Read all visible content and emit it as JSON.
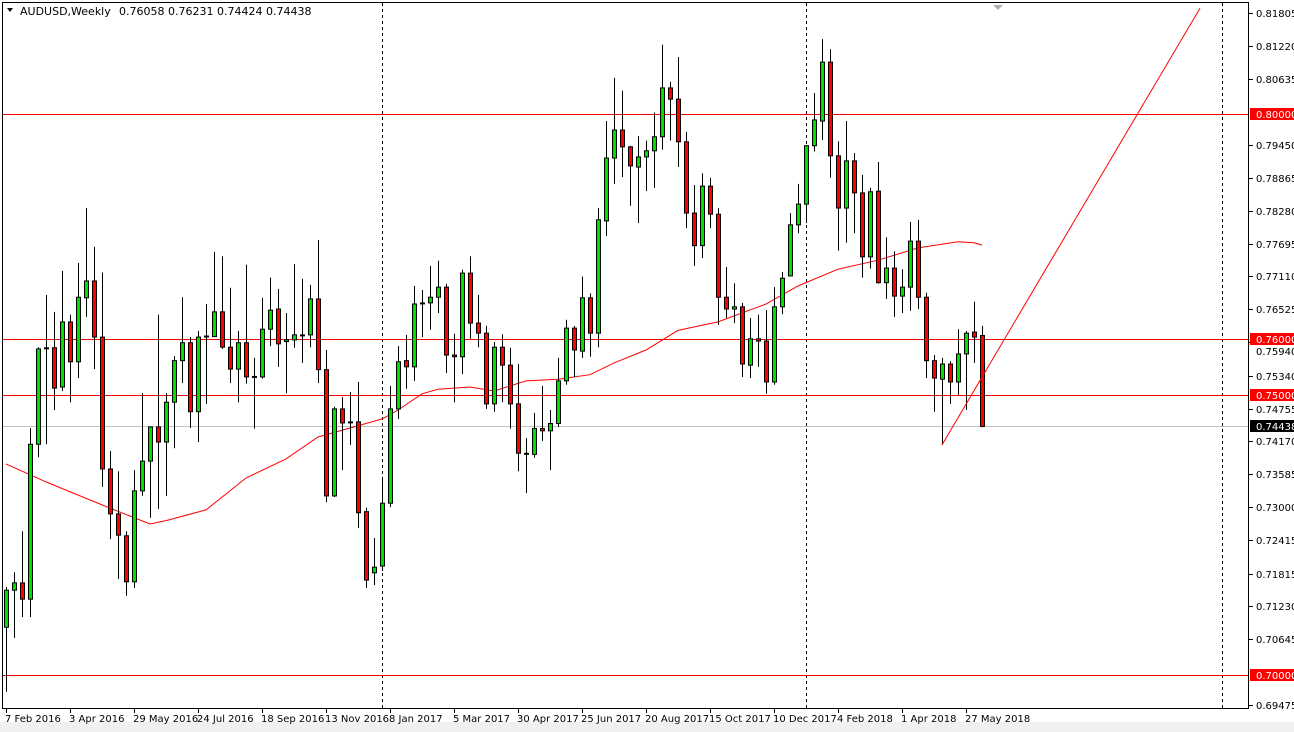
{
  "header": {
    "symbol_timeframe": "AUDUSD,Weekly",
    "ohlc_text": "0.76058 0.76231 0.74424 0.74438"
  },
  "colors": {
    "bull": "#00e000",
    "bear": "#ff0000",
    "outline": "#000000",
    "ma": "#ff0000",
    "hline": "#ff0000",
    "trendline": "#ff0000",
    "price_line": "#c0c0c0",
    "current_price_box": "#000000"
  },
  "chart_data": {
    "type": "candlestick",
    "symbol": "AUDUSD",
    "timeframe": "Weekly",
    "ylim": [
      0.69475,
      0.81805
    ],
    "grid": false,
    "y_ticks": [
      "0.81805",
      "0.81220",
      "0.80635",
      "0.79450",
      "0.78865",
      "0.78280",
      "0.77695",
      "0.77110",
      "0.76525",
      "0.75940",
      "0.75340",
      "0.74755",
      "0.74170",
      "0.73585",
      "0.73000",
      "0.72415",
      "0.71815",
      "0.71230",
      "0.70645",
      "0.69475"
    ],
    "x_ticks": [
      {
        "label": "7 Feb 2016",
        "bar": 0
      },
      {
        "label": "3 Apr 2016",
        "bar": 8
      },
      {
        "label": "29 May 2016",
        "bar": 16
      },
      {
        "label": "24 Jul 2016",
        "bar": 24
      },
      {
        "label": "18 Sep 2016",
        "bar": 32
      },
      {
        "label": "13 Nov 2016",
        "bar": 40
      },
      {
        "label": "8 Jan 2017",
        "bar": 48
      },
      {
        "label": "5 Mar 2017",
        "bar": 56
      },
      {
        "label": "30 Apr 2017",
        "bar": 64
      },
      {
        "label": "25 Jun 2017",
        "bar": 72
      },
      {
        "label": "20 Aug 2017",
        "bar": 80
      },
      {
        "label": "15 Oct 2017",
        "bar": 88
      },
      {
        "label": "10 Dec 2017",
        "bar": 96
      },
      {
        "label": "4 Feb 2018",
        "bar": 104
      },
      {
        "label": "1 Apr 2018",
        "bar": 112
      },
      {
        "label": "27 May 2018",
        "bar": 120
      }
    ],
    "period_separators_bar": [
      47,
      100,
      152
    ],
    "horizontal_levels": [
      {
        "price": 0.8,
        "label": "0.80000"
      },
      {
        "price": 0.76,
        "label": "0.76000"
      },
      {
        "price": 0.75,
        "label": "0.75000"
      },
      {
        "price": 0.7,
        "label": "0.70000"
      }
    ],
    "current_price": {
      "price": 0.74438,
      "label": "0.74438"
    },
    "trendline": [
      {
        "bar": 117,
        "price": 0.7411
      },
      {
        "bar": 149.25,
        "price": 0.8189
      }
    ],
    "candles_ohlc": [
      [
        0.7086,
        0.7158,
        0.6971,
        0.7152
      ],
      [
        0.7152,
        0.7184,
        0.7067,
        0.7165
      ],
      [
        0.7165,
        0.7257,
        0.7104,
        0.7136
      ],
      [
        0.7136,
        0.7441,
        0.7104,
        0.7412
      ],
      [
        0.7412,
        0.7585,
        0.7389,
        0.7582
      ],
      [
        0.7582,
        0.7678,
        0.7412,
        0.7583
      ],
      [
        0.7584,
        0.7648,
        0.7473,
        0.7512
      ],
      [
        0.7514,
        0.7721,
        0.7507,
        0.763
      ],
      [
        0.763,
        0.7643,
        0.7487,
        0.7559
      ],
      [
        0.7559,
        0.7735,
        0.753,
        0.7674
      ],
      [
        0.7673,
        0.7833,
        0.7639,
        0.7703
      ],
      [
        0.7703,
        0.7764,
        0.7546,
        0.7603
      ],
      [
        0.7603,
        0.7718,
        0.7336,
        0.7368
      ],
      [
        0.7368,
        0.74,
        0.7243,
        0.7288
      ],
      [
        0.7288,
        0.7364,
        0.7172,
        0.725
      ],
      [
        0.7249,
        0.7257,
        0.7142,
        0.7167
      ],
      [
        0.7167,
        0.7366,
        0.7156,
        0.7329
      ],
      [
        0.7329,
        0.7503,
        0.732,
        0.7382
      ],
      [
        0.7382,
        0.7443,
        0.7281,
        0.7443
      ],
      [
        0.7443,
        0.7643,
        0.7297,
        0.7416
      ],
      [
        0.7416,
        0.7503,
        0.732,
        0.7487
      ],
      [
        0.7487,
        0.7569,
        0.7405,
        0.7561
      ],
      [
        0.7561,
        0.7674,
        0.7521,
        0.7593
      ],
      [
        0.7593,
        0.7603,
        0.7441,
        0.747
      ],
      [
        0.747,
        0.7614,
        0.7416,
        0.7603
      ],
      [
        0.7603,
        0.7662,
        0.7484,
        0.7604
      ],
      [
        0.7604,
        0.7755,
        0.7603,
        0.7648
      ],
      [
        0.7648,
        0.7747,
        0.7582,
        0.7585
      ],
      [
        0.7585,
        0.7691,
        0.7521,
        0.7546
      ],
      [
        0.7546,
        0.7614,
        0.7487,
        0.7593
      ],
      [
        0.7593,
        0.7732,
        0.752,
        0.7532
      ],
      [
        0.7532,
        0.7566,
        0.744,
        0.7531
      ],
      [
        0.7532,
        0.7673,
        0.7529,
        0.7617
      ],
      [
        0.7617,
        0.7709,
        0.7587,
        0.7651
      ],
      [
        0.7653,
        0.7689,
        0.755,
        0.7591
      ],
      [
        0.7595,
        0.7646,
        0.7503,
        0.7598
      ],
      [
        0.7598,
        0.7733,
        0.7584,
        0.7607
      ],
      [
        0.7605,
        0.7707,
        0.7557,
        0.7606
      ],
      [
        0.7607,
        0.7696,
        0.7585,
        0.7671
      ],
      [
        0.7671,
        0.7776,
        0.7521,
        0.7545
      ],
      [
        0.7545,
        0.758,
        0.7309,
        0.732
      ],
      [
        0.732,
        0.7479,
        0.7318,
        0.7475
      ],
      [
        0.7475,
        0.7496,
        0.7366,
        0.745
      ],
      [
        0.745,
        0.7505,
        0.7411,
        0.7451
      ],
      [
        0.7452,
        0.7523,
        0.7263,
        0.729
      ],
      [
        0.7292,
        0.7299,
        0.7156,
        0.717
      ],
      [
        0.7183,
        0.7245,
        0.7161,
        0.7193
      ],
      [
        0.7195,
        0.7354,
        0.7186,
        0.7307
      ],
      [
        0.7307,
        0.7516,
        0.73,
        0.7475
      ],
      [
        0.7475,
        0.7587,
        0.7457,
        0.7559
      ],
      [
        0.7561,
        0.7607,
        0.7511,
        0.755
      ],
      [
        0.755,
        0.7694,
        0.7525,
        0.7662
      ],
      [
        0.7662,
        0.7687,
        0.7603,
        0.7663
      ],
      [
        0.7664,
        0.773,
        0.7616,
        0.7674
      ],
      [
        0.7674,
        0.7739,
        0.7646,
        0.7692
      ],
      [
        0.7692,
        0.7698,
        0.7539,
        0.7571
      ],
      [
        0.7571,
        0.7609,
        0.7487,
        0.7568
      ],
      [
        0.7568,
        0.7723,
        0.7537,
        0.7717
      ],
      [
        0.7717,
        0.7747,
        0.76,
        0.7628
      ],
      [
        0.7628,
        0.7678,
        0.7585,
        0.761
      ],
      [
        0.761,
        0.7623,
        0.7475,
        0.7484
      ],
      [
        0.7484,
        0.7594,
        0.747,
        0.7585
      ],
      [
        0.7585,
        0.7608,
        0.7487,
        0.7553
      ],
      [
        0.7553,
        0.7584,
        0.744,
        0.7484
      ],
      [
        0.7484,
        0.7555,
        0.7364,
        0.7396
      ],
      [
        0.7395,
        0.7423,
        0.7325,
        0.7394
      ],
      [
        0.7394,
        0.7468,
        0.7388,
        0.744
      ],
      [
        0.744,
        0.7516,
        0.7418,
        0.7436
      ],
      [
        0.7436,
        0.7473,
        0.7366,
        0.7449
      ],
      [
        0.7449,
        0.7566,
        0.7443,
        0.7525
      ],
      [
        0.7525,
        0.7634,
        0.7518,
        0.7619
      ],
      [
        0.7619,
        0.7623,
        0.7532,
        0.758
      ],
      [
        0.7578,
        0.7711,
        0.7566,
        0.7673
      ],
      [
        0.7673,
        0.7681,
        0.7568,
        0.761
      ],
      [
        0.761,
        0.7833,
        0.7585,
        0.7812
      ],
      [
        0.781,
        0.7988,
        0.7783,
        0.7922
      ],
      [
        0.7922,
        0.8065,
        0.7876,
        0.7972
      ],
      [
        0.7972,
        0.8042,
        0.7888,
        0.7942
      ],
      [
        0.7942,
        0.7944,
        0.7837,
        0.7908
      ],
      [
        0.7906,
        0.7961,
        0.7806,
        0.7924
      ],
      [
        0.7924,
        0.7953,
        0.7863,
        0.7935
      ],
      [
        0.7935,
        0.8003,
        0.7869,
        0.796
      ],
      [
        0.796,
        0.8124,
        0.7937,
        0.8047
      ],
      [
        0.8047,
        0.8058,
        0.7953,
        0.8027
      ],
      [
        0.8027,
        0.8102,
        0.7906,
        0.7951
      ],
      [
        0.7951,
        0.7969,
        0.7797,
        0.7824
      ],
      [
        0.7824,
        0.7874,
        0.773,
        0.7766
      ],
      [
        0.7766,
        0.7895,
        0.7744,
        0.7872
      ],
      [
        0.7872,
        0.7887,
        0.7797,
        0.7822
      ],
      [
        0.7822,
        0.7833,
        0.7625,
        0.7674
      ],
      [
        0.7674,
        0.7728,
        0.7637,
        0.7653
      ],
      [
        0.7653,
        0.7699,
        0.7628,
        0.7657
      ],
      [
        0.7657,
        0.7664,
        0.7532,
        0.7555
      ],
      [
        0.7553,
        0.7637,
        0.753,
        0.76
      ],
      [
        0.76,
        0.7643,
        0.755,
        0.7596
      ],
      [
        0.7596,
        0.7651,
        0.7502,
        0.7523
      ],
      [
        0.7523,
        0.7692,
        0.7518,
        0.7657
      ],
      [
        0.7657,
        0.7719,
        0.7644,
        0.7708
      ],
      [
        0.7712,
        0.7824,
        0.7711,
        0.7803
      ],
      [
        0.7803,
        0.7876,
        0.7788,
        0.784
      ],
      [
        0.784,
        0.7945,
        0.7806,
        0.7944
      ],
      [
        0.7944,
        0.8038,
        0.7934,
        0.799
      ],
      [
        0.7988,
        0.8134,
        0.7954,
        0.8093
      ],
      [
        0.8093,
        0.8116,
        0.7887,
        0.7926
      ],
      [
        0.7926,
        0.7952,
        0.7757,
        0.7833
      ],
      [
        0.7833,
        0.7988,
        0.7771,
        0.7917
      ],
      [
        0.7917,
        0.7931,
        0.7788,
        0.786
      ],
      [
        0.786,
        0.7892,
        0.7709,
        0.7746
      ],
      [
        0.7746,
        0.7869,
        0.7725,
        0.7862
      ],
      [
        0.7863,
        0.7915,
        0.7698,
        0.77
      ],
      [
        0.77,
        0.7781,
        0.7671,
        0.7726
      ],
      [
        0.7726,
        0.7756,
        0.7639,
        0.7676
      ],
      [
        0.7676,
        0.7724,
        0.7646,
        0.7692
      ],
      [
        0.7692,
        0.7808,
        0.765,
        0.7774
      ],
      [
        0.7774,
        0.7812,
        0.7653,
        0.7674
      ],
      [
        0.7674,
        0.7682,
        0.753,
        0.7561
      ],
      [
        0.7561,
        0.7571,
        0.747,
        0.753
      ],
      [
        0.7528,
        0.7566,
        0.7411,
        0.7555
      ],
      [
        0.7555,
        0.756,
        0.7484,
        0.7523
      ],
      [
        0.7523,
        0.7617,
        0.75,
        0.7573
      ],
      [
        0.7573,
        0.7614,
        0.7473,
        0.761
      ],
      [
        0.7612,
        0.7666,
        0.7557,
        0.7603
      ],
      [
        0.76058,
        0.76231,
        0.74424,
        0.74438
      ]
    ],
    "moving_average": [
      {
        "bar": 0,
        "price": 0.7377
      },
      {
        "bar": 5,
        "price": 0.7345
      },
      {
        "bar": 12,
        "price": 0.7304
      },
      {
        "bar": 18,
        "price": 0.727
      },
      {
        "bar": 20,
        "price": 0.7276
      },
      {
        "bar": 25,
        "price": 0.7295
      },
      {
        "bar": 30,
        "price": 0.7352
      },
      {
        "bar": 35,
        "price": 0.7386
      },
      {
        "bar": 39,
        "price": 0.7425
      },
      {
        "bar": 43,
        "price": 0.7441
      },
      {
        "bar": 47,
        "price": 0.7457
      },
      {
        "bar": 49,
        "price": 0.7473
      },
      {
        "bar": 52,
        "price": 0.7502
      },
      {
        "bar": 54,
        "price": 0.751
      },
      {
        "bar": 58,
        "price": 0.7514
      },
      {
        "bar": 61,
        "price": 0.7507
      },
      {
        "bar": 65,
        "price": 0.7525
      },
      {
        "bar": 69,
        "price": 0.7528
      },
      {
        "bar": 73,
        "price": 0.7536
      },
      {
        "bar": 76,
        "price": 0.7557
      },
      {
        "bar": 80,
        "price": 0.758
      },
      {
        "bar": 84,
        "price": 0.7615
      },
      {
        "bar": 89,
        "price": 0.763
      },
      {
        "bar": 95,
        "price": 0.7662
      },
      {
        "bar": 99,
        "price": 0.7694
      },
      {
        "bar": 104,
        "price": 0.7724
      },
      {
        "bar": 109,
        "price": 0.774
      },
      {
        "bar": 114,
        "price": 0.7762
      },
      {
        "bar": 119,
        "price": 0.7773
      },
      {
        "bar": 121,
        "price": 0.7771
      },
      {
        "bar": 122,
        "price": 0.7767
      }
    ]
  }
}
